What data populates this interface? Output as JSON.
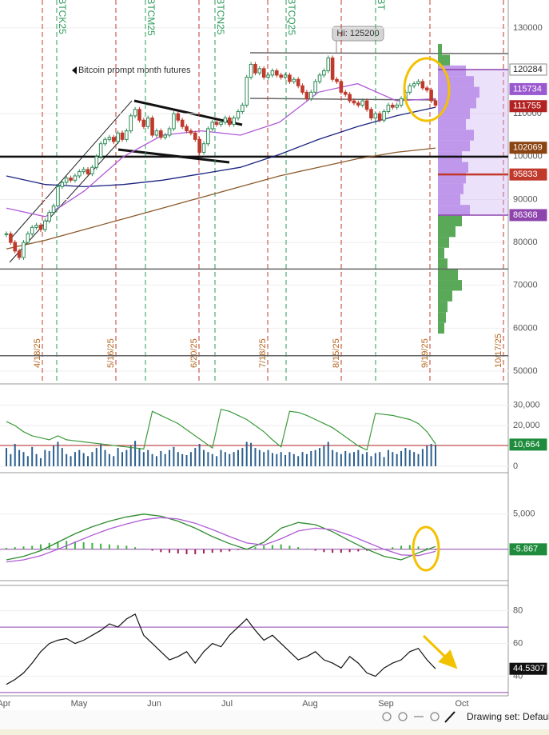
{
  "chart_data": [
    {
      "type": "candlestick",
      "annotation": "Bitcoin prompt month futures",
      "high_label": "Hi: 125200",
      "contracts": [
        "/BTCK25",
        "/BTCM25",
        "/BTCN25",
        "/BTCQ25",
        "/BT"
      ],
      "expiry_dates": [
        "4/18/25",
        "5/16/25",
        "6/20/25",
        "7/18/25",
        "8/15/25",
        "9/19/25",
        "10/17/25"
      ],
      "x_labels": [
        "Apr",
        "May",
        "Jun",
        "Jul",
        "Aug",
        "Sep",
        "Oct"
      ],
      "ylim": [
        47400,
        136500
      ],
      "yticks": [
        130000,
        110000,
        100000,
        90000,
        80000,
        70000,
        60000,
        50000
      ],
      "up_color": "#2e8b57",
      "down_color": "#c0392b",
      "closes": [
        82000,
        80000,
        78000,
        76500,
        80000,
        82000,
        83500,
        84000,
        83000,
        85000,
        87000,
        88500,
        93000,
        94000,
        95000,
        94500,
        95500,
        96500,
        97000,
        96000,
        97500,
        100000,
        103000,
        104000,
        104500,
        103500,
        105500,
        104000,
        106000,
        109500,
        111000,
        108500,
        107000,
        109000,
        105000,
        106000,
        104500,
        105000,
        106500,
        110000,
        108500,
        107000,
        106000,
        105500,
        104000,
        101000,
        103000,
        106500,
        108000,
        107500,
        108000,
        109000,
        107500,
        109000,
        110500,
        112000,
        118500,
        121500,
        119500,
        120500,
        118500,
        119000,
        120000,
        119000,
        118500,
        119000,
        117500,
        118000,
        116500,
        115000,
        113500,
        115000,
        117500,
        119000,
        120000,
        123000,
        118000,
        117500,
        115000,
        114500,
        113000,
        112500,
        112000,
        113000,
        111000,
        109000,
        110000,
        108500,
        110500,
        112000,
        111500,
        112000,
        113500,
        115000,
        116500,
        117000,
        117500,
        116000,
        115500,
        113000,
        112000
      ],
      "moving_averages": [
        {
          "color": "#1a237e",
          "values": [
            95500,
            93500,
            93000,
            93500,
            94500,
            96000,
            97500,
            100500,
            104000,
            107000,
            109500,
            111500
          ]
        },
        {
          "color": "#8b5a2b",
          "values": [
            78500,
            80500,
            83000,
            85500,
            88000,
            90500,
            93000,
            95500,
            97500,
            99500,
            101000,
            102000
          ]
        },
        {
          "color": "#b05bd6",
          "values": [
            88000,
            86000,
            92000,
            100000,
            105000,
            106000,
            105000,
            108000,
            115000,
            117000,
            113000,
            113500
          ]
        }
      ],
      "horizontal_lines": [
        100000,
        73800,
        53600
      ],
      "price_levels": [
        {
          "value": 120284,
          "color": "#8e44ad"
        },
        {
          "value": 115734,
          "color": "#9b59d0"
        },
        {
          "value": 111755,
          "color": "#b22222"
        },
        {
          "value": 102069,
          "color": "#8b4513"
        },
        {
          "value": 95833,
          "color": "#c0392b"
        },
        {
          "value": 86368,
          "color": "#8e44ad"
        }
      ],
      "profile": {
        "prices": [
          60000,
          62500,
          65000,
          67500,
          70000,
          72500,
          75000,
          77500,
          80000,
          82500,
          85000,
          87500,
          90000,
          92500,
          95000,
          97500,
          100000,
          102500,
          105000,
          107500,
          110000,
          112500,
          115000,
          117500,
          120000,
          122500,
          125000
        ],
        "sizes": [
          8,
          10,
          12,
          18,
          30,
          25,
          12,
          8,
          14,
          22,
          30,
          40,
          28,
          32,
          35,
          38,
          30,
          40,
          45,
          35,
          40,
          48,
          52,
          45,
          35,
          15,
          5
        ],
        "color": "#3c9a3c",
        "value_area_color": "#c9a8f0"
      }
    },
    {
      "type": "bar",
      "color": "#2b5f8f",
      "line_color": "#3c9a3c",
      "ylim": [
        0,
        35000
      ],
      "yticks": [
        {
          "value": 30000,
          "label": "30,000"
        },
        {
          "value": 20000,
          "label": "20,000"
        },
        {
          "value": 0,
          "label": "0"
        }
      ],
      "last_value": {
        "value": 10664,
        "label": "10,664"
      },
      "values": [
        9000,
        6000,
        11000,
        8000,
        7000,
        5000,
        9500,
        6000,
        4000,
        8000,
        7500,
        10000,
        12000,
        9000,
        6000,
        5000,
        7000,
        8000,
        6500,
        5000,
        7000,
        9000,
        11000,
        8000,
        6000,
        5000,
        9000,
        7000,
        8000,
        10000,
        12500,
        9000,
        7000,
        8000,
        6000,
        5000,
        7500,
        6000,
        8000,
        9500,
        7000,
        6000,
        5500,
        7000,
        9000,
        11000,
        8000,
        7000,
        6000,
        5000,
        8000,
        7000,
        6000,
        7000,
        8000,
        9000,
        12000,
        11500,
        9000,
        8000,
        7000,
        8000,
        6500,
        6000,
        7000,
        5500,
        7000,
        6000,
        5000,
        7000,
        6000,
        7500,
        8000,
        9000,
        10000,
        12000,
        8000,
        7000,
        6000,
        7500,
        6500,
        7000,
        8000,
        6000,
        7000,
        5000,
        6500,
        7000,
        4500,
        8000,
        7000,
        6000,
        7500,
        9000,
        8000,
        7000,
        6000,
        8500,
        10000,
        11000,
        10664
      ],
      "open_interest": [
        22000,
        20000,
        17000,
        15000,
        14000,
        13000,
        15000,
        13000,
        12500,
        12000,
        11500,
        11000,
        10500,
        10000,
        9500,
        9000,
        8500,
        27000,
        25000,
        23000,
        21000,
        18000,
        15000,
        12000,
        9000,
        28000,
        27000,
        25000,
        23000,
        20000,
        17000,
        13000,
        9500,
        27000,
        26500,
        25000,
        23000,
        21000,
        19000,
        16000,
        13000,
        10000,
        8000,
        26000,
        25500,
        25000,
        24000,
        23000,
        21000,
        17000,
        11000
      ]
    },
    {
      "type": "macd",
      "ylim": [
        -4000,
        10200
      ],
      "yticks": [
        {
          "value": 5000,
          "label": "5,000"
        }
      ],
      "last_value": -5.867,
      "macd": [
        -1500,
        -1000,
        -200,
        1000,
        2200,
        3200,
        4000,
        4600,
        5000,
        4700,
        4000,
        3000,
        1800,
        800,
        0,
        1000,
        3000,
        3800,
        3500,
        2500,
        1200,
        0,
        -1000,
        -1500,
        -500,
        400
      ],
      "signal": [
        -1800,
        -1500,
        -900,
        0,
        1000,
        2000,
        2900,
        3600,
        4200,
        4500,
        4300,
        3700,
        2800,
        1800,
        900,
        600,
        1500,
        2600,
        3000,
        2800,
        2000,
        1000,
        0,
        -800,
        -900,
        -300
      ],
      "histogram": [
        200,
        300,
        400,
        500,
        700,
        900,
        1100,
        1200,
        1100,
        1000,
        900,
        800,
        700,
        600,
        500,
        300,
        100,
        -200,
        -400,
        -500,
        -600,
        -700,
        -700,
        -600,
        -500,
        -400,
        -300,
        -100,
        100,
        300,
        500,
        600,
        700,
        500,
        300,
        100,
        -200,
        -400,
        -500,
        -500,
        -400,
        -300,
        -200,
        -100,
        100,
        300,
        500,
        600,
        400,
        200,
        -100
      ],
      "macd_color": "#2e8b2e",
      "signal_color": "#b05bd6",
      "pos_color": "#3cb43c",
      "neg_color": "#a0224a"
    },
    {
      "type": "line",
      "ylim": [
        28,
        95
      ],
      "yticks": [
        80,
        60,
        40
      ],
      "bands": [
        70,
        30
      ],
      "color": "#111",
      "band_color": "#8e44ad",
      "values": [
        35,
        38,
        42,
        48,
        55,
        60,
        62,
        63,
        60,
        62,
        65,
        68,
        72,
        70,
        75,
        78,
        65,
        60,
        55,
        50,
        52,
        55,
        48,
        55,
        60,
        58,
        65,
        70,
        75,
        68,
        62,
        65,
        60,
        55,
        50,
        52,
        55,
        50,
        48,
        45,
        52,
        48,
        42,
        40,
        45,
        48,
        50,
        55,
        57,
        50,
        44.5307
      ]
    }
  ],
  "toolbar": {
    "label": "Drawing set: Default"
  }
}
